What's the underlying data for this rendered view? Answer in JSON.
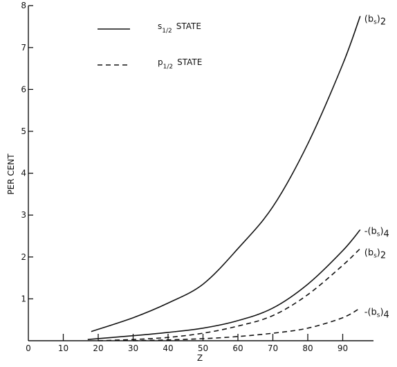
{
  "chart_data": {
    "type": "line",
    "xlabel": "Z",
    "ylabel": "PER CENT",
    "xlim": [
      0,
      100
    ],
    "ylim": [
      0,
      8
    ],
    "xticks": [
      "0",
      "10",
      "20",
      "30",
      "40",
      "50",
      "60",
      "70",
      "80",
      "90"
    ],
    "yticks": [
      "1",
      "2",
      "3",
      "4",
      "5",
      "6",
      "7",
      "8"
    ],
    "grid": false,
    "legend_position": "top-left",
    "legend": [
      {
        "text": "s",
        "sub": "1/2",
        "suffix": "STATE",
        "style": "solid"
      },
      {
        "text": "p",
        "sub": "1/2",
        "suffix": "STATE",
        "style": "dashed"
      }
    ],
    "series": [
      {
        "style": "solid",
        "label": "(b",
        "label_sub": "s",
        "label_end": ")",
        "label_index": "2",
        "x": [
          18,
          30,
          40,
          50,
          60,
          70,
          80,
          90,
          95
        ],
        "y": [
          0.22,
          0.55,
          0.9,
          1.35,
          2.2,
          3.2,
          4.7,
          6.6,
          7.75
        ]
      },
      {
        "style": "solid",
        "label": "-(b",
        "label_sub": "s",
        "label_end": ")",
        "label_index": "4",
        "x": [
          17,
          30,
          40,
          50,
          60,
          70,
          80,
          90,
          95
        ],
        "y": [
          0.03,
          0.12,
          0.2,
          0.3,
          0.48,
          0.78,
          1.35,
          2.15,
          2.65
        ]
      },
      {
        "style": "dashed",
        "label": "(b",
        "label_sub": "s",
        "label_end": ")",
        "label_index": "2",
        "x": [
          20,
          30,
          40,
          50,
          60,
          70,
          80,
          90,
          95
        ],
        "y": [
          0.0,
          0.03,
          0.08,
          0.18,
          0.35,
          0.6,
          1.1,
          1.8,
          2.2
        ]
      },
      {
        "style": "dashed",
        "label": "-(b",
        "label_sub": "s",
        "label_end": ")",
        "label_index": "4",
        "x": [
          30,
          40,
          50,
          60,
          70,
          80,
          90,
          95
        ],
        "y": [
          0.0,
          0.02,
          0.05,
          0.1,
          0.18,
          0.3,
          0.55,
          0.78
        ]
      }
    ]
  }
}
